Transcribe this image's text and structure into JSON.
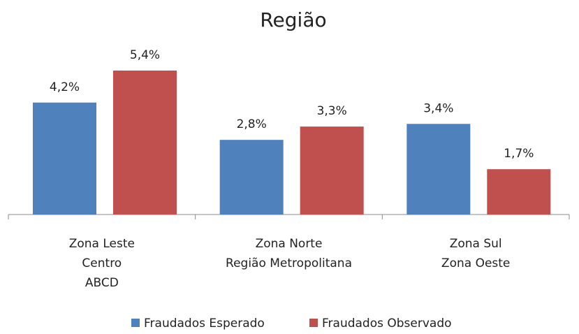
{
  "chart_data": {
    "type": "bar",
    "title": "Região",
    "categories": [
      [
        "Zona Leste",
        "Centro",
        "ABCD"
      ],
      [
        "Zona Norte",
        "Região Metropolitana"
      ],
      [
        "Zona Sul",
        "Zona Oeste"
      ]
    ],
    "series": [
      {
        "name": "Fraudados Esperado",
        "color": "#4f81bd",
        "values": [
          4.2,
          2.8,
          3.4
        ],
        "value_labels": [
          "4,2%",
          "2,8%",
          "3,4%"
        ]
      },
      {
        "name": "Fraudados Observado",
        "color": "#c0504d",
        "values": [
          5.4,
          3.3,
          1.7
        ],
        "value_labels": [
          "5,4%",
          "3,3%",
          "1,7%"
        ]
      }
    ],
    "legend": "bottom"
  }
}
